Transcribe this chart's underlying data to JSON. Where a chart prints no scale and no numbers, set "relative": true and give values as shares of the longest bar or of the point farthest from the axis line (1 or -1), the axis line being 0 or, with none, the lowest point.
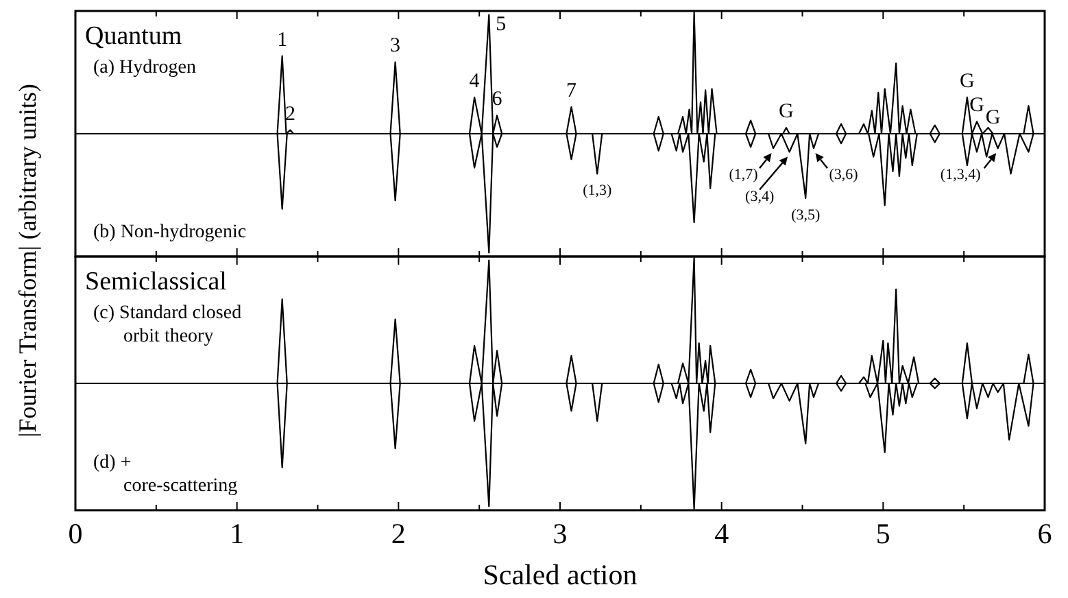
{
  "chart_data": [
    {
      "type": "line",
      "title": "Quantum",
      "ylabel": "|Fourier Transform| (arbitrary units)",
      "relative": true,
      "tick_labels": false,
      "xlim": [
        0,
        6
      ],
      "xticks": [
        0,
        {
          "value": 0.5,
          "label": null
        },
        1,
        {
          "value": 1.5,
          "label": null
        },
        2,
        {
          "value": 2.5,
          "label": null
        },
        3,
        {
          "value": 3.5,
          "label": null
        },
        4,
        {
          "value": 4.5,
          "label": null
        },
        5,
        {
          "value": 5.5,
          "label": null
        },
        6
      ],
      "series": [
        {
          "name": "(a) Hydrogen",
          "color": "#000000",
          "x": [
            0,
            1.25,
            1.28,
            1.305,
            1.33,
            1.35,
            1.95,
            1.98,
            2.01,
            2.44,
            2.47,
            2.515,
            2.56,
            2.585,
            2.61,
            2.64,
            3.04,
            3.07,
            3.1,
            3.58,
            3.61,
            3.64,
            3.73,
            3.76,
            3.78,
            3.8,
            3.815,
            3.83,
            3.85,
            3.87,
            3.885,
            3.9,
            3.92,
            3.94,
            3.97,
            4.15,
            4.18,
            4.21,
            4.38,
            4.4,
            4.42,
            4.71,
            4.74,
            4.77,
            4.85,
            4.88,
            4.905,
            4.93,
            4.95,
            4.97,
            4.99,
            5.01,
            5.045,
            5.08,
            5.1,
            5.12,
            5.145,
            5.17,
            5.2,
            5.29,
            5.32,
            5.35,
            5.49,
            5.52,
            5.55,
            5.58,
            5.615,
            5.65,
            5.68,
            5.87,
            5.9,
            5.93,
            6.0
          ],
          "values": [
            0,
            0,
            0.64,
            0,
            0.03,
            0,
            0,
            0.59,
            0,
            0,
            0.3,
            0,
            0.98,
            0,
            0.15,
            0,
            0,
            0.22,
            0,
            0,
            0.14,
            0,
            0,
            0.14,
            0,
            0.2,
            0,
            1.0,
            0,
            0.26,
            0,
            0.36,
            0,
            0.37,
            0,
            0,
            0.11,
            0,
            0,
            0.05,
            0,
            0,
            0.08,
            0,
            0,
            0.08,
            0,
            0.19,
            0,
            0.34,
            0,
            0.37,
            0,
            0.58,
            0,
            0.23,
            0,
            0.2,
            0,
            0,
            0.07,
            0,
            0,
            0.3,
            0,
            0.1,
            0,
            0.05,
            0,
            0,
            0.23,
            0,
            0
          ]
        },
        {
          "name": "(b) Non-hydrogenic",
          "color": "#000000",
          "x": [
            0,
            1.25,
            1.28,
            1.31,
            1.95,
            1.98,
            2.01,
            2.44,
            2.47,
            2.515,
            2.56,
            2.585,
            2.61,
            2.64,
            3.04,
            3.07,
            3.1,
            3.2,
            3.23,
            3.26,
            3.58,
            3.61,
            3.64,
            3.69,
            3.72,
            3.74,
            3.76,
            3.795,
            3.83,
            3.86,
            3.89,
            3.91,
            3.93,
            3.96,
            4.15,
            4.18,
            4.21,
            4.29,
            4.32,
            4.37,
            4.42,
            4.47,
            4.52,
            4.545,
            4.57,
            4.6,
            4.71,
            4.74,
            4.77,
            4.91,
            4.94,
            4.975,
            5.01,
            5.035,
            5.06,
            5.08,
            5.1,
            5.12,
            5.14,
            5.16,
            5.18,
            5.21,
            5.29,
            5.32,
            5.35,
            5.49,
            5.52,
            5.55,
            5.58,
            5.61,
            5.64,
            5.675,
            5.71,
            5.75,
            5.79,
            5.845,
            5.9,
            5.93,
            6.0
          ],
          "values": [
            0,
            0,
            -0.62,
            0,
            0,
            -0.55,
            0,
            0,
            -0.28,
            0,
            -0.98,
            0,
            -0.11,
            0,
            0,
            -0.21,
            0,
            0,
            -0.33,
            0,
            0,
            -0.14,
            0,
            0,
            -0.14,
            0,
            -0.15,
            0,
            -0.73,
            0,
            -0.23,
            0,
            -0.45,
            0,
            0,
            -0.11,
            0,
            0,
            -0.12,
            0,
            -0.15,
            0,
            -0.53,
            0,
            -0.12,
            0,
            0,
            -0.08,
            0,
            0,
            -0.19,
            0,
            -0.59,
            0,
            -0.31,
            0,
            -0.35,
            0,
            -0.2,
            0,
            -0.26,
            0,
            0,
            -0.07,
            0,
            0,
            -0.26,
            0,
            -0.15,
            0,
            -0.19,
            0,
            -0.12,
            0,
            -0.33,
            0,
            -0.15,
            0,
            0
          ]
        }
      ],
      "annotations": [
        {
          "text": "1",
          "x": 1.28,
          "y": 0.64
        },
        {
          "text": "2",
          "x": 1.33,
          "y": 0.03
        },
        {
          "text": "3",
          "x": 1.98,
          "y": 0.59
        },
        {
          "text": "4",
          "x": 2.47,
          "y": 0.3
        },
        {
          "text": "5",
          "x": 2.56,
          "y": 0.98
        },
        {
          "text": "6",
          "x": 2.61,
          "y": 0.15
        },
        {
          "text": "7",
          "x": 3.07,
          "y": 0.22
        },
        {
          "text": "G",
          "x": 4.4,
          "y": 0.05
        },
        {
          "text": "(1,3)",
          "x": 3.23,
          "y": -0.33
        },
        {
          "text": "(1,7)",
          "x": 4.32,
          "y": -0.12
        },
        {
          "text": "(3,4)",
          "x": 4.42,
          "y": -0.15
        },
        {
          "text": "(3,5)",
          "x": 4.52,
          "y": -0.53
        },
        {
          "text": "(3,6)",
          "x": 4.57,
          "y": -0.12
        },
        {
          "text": "(1,3,4)",
          "x": 5.71,
          "y": -0.12
        },
        {
          "text": "G",
          "x": 5.52,
          "y": 0.3
        },
        {
          "text": "G",
          "x": 5.58,
          "y": 0.1
        },
        {
          "text": "G",
          "x": 5.68,
          "y": 0
        }
      ]
    },
    {
      "type": "line",
      "title": "Semiclassical",
      "xlabel": "Scaled action",
      "relative": true,
      "tick_labels": "x",
      "xlim": [
        0,
        6
      ],
      "xticks": [
        0,
        {
          "value": 0.5,
          "label": null
        },
        1,
        {
          "value": 1.5,
          "label": null
        },
        2,
        {
          "value": 2.5,
          "label": null
        },
        3,
        {
          "value": 3.5,
          "label": null
        },
        4,
        {
          "value": 4.5,
          "label": null
        },
        5,
        {
          "value": 5.5,
          "label": null
        },
        6
      ],
      "series": [
        {
          "name": "(c) Standard closed orbit theory",
          "color": "#000000",
          "x": [
            0,
            1.25,
            1.28,
            1.31,
            1.95,
            1.98,
            2.01,
            2.44,
            2.47,
            2.515,
            2.56,
            2.585,
            2.61,
            2.64,
            3.04,
            3.07,
            3.1,
            3.58,
            3.61,
            3.64,
            3.73,
            3.76,
            3.795,
            3.83,
            3.845,
            3.86,
            3.88,
            3.9,
            3.915,
            3.93,
            3.96,
            4.15,
            4.18,
            4.21,
            4.71,
            4.74,
            4.77,
            4.85,
            4.88,
            4.905,
            4.93,
            4.965,
            5.0,
            5.015,
            5.03,
            5.055,
            5.08,
            5.1,
            5.12,
            5.155,
            5.19,
            5.22,
            5.29,
            5.32,
            5.35,
            5.49,
            5.52,
            5.55,
            5.87,
            5.9,
            5.93,
            6.0
          ],
          "values": [
            0,
            0,
            0.67,
            0,
            0,
            0.51,
            0,
            0,
            0.3,
            0,
            0.98,
            0,
            0.26,
            0,
            0,
            0.22,
            0,
            0,
            0.15,
            0,
            0,
            0.16,
            0,
            1.0,
            0,
            0.32,
            0,
            0.18,
            0,
            0.3,
            0,
            0,
            0.11,
            0,
            0,
            0.06,
            0,
            0,
            0.05,
            0,
            0.22,
            0,
            0.34,
            0,
            0.32,
            0,
            0.75,
            0,
            0.14,
            0,
            0.21,
            0,
            0,
            0.04,
            0,
            0,
            0.32,
            0,
            0,
            0.23,
            0,
            0
          ]
        },
        {
          "name": "(d) + core-scattering",
          "color": "#000000",
          "x": [
            0,
            1.25,
            1.28,
            1.31,
            1.95,
            1.98,
            2.01,
            2.44,
            2.47,
            2.515,
            2.56,
            2.585,
            2.61,
            2.64,
            3.04,
            3.07,
            3.1,
            3.2,
            3.23,
            3.26,
            3.58,
            3.61,
            3.64,
            3.69,
            3.72,
            3.74,
            3.76,
            3.795,
            3.83,
            3.86,
            3.89,
            3.91,
            3.93,
            3.96,
            4.15,
            4.18,
            4.21,
            4.29,
            4.32,
            4.37,
            4.42,
            4.47,
            4.52,
            4.545,
            4.57,
            4.6,
            4.71,
            4.74,
            4.77,
            4.89,
            4.92,
            4.965,
            5.01,
            5.035,
            5.06,
            5.08,
            5.1,
            5.12,
            5.14,
            5.16,
            5.18,
            5.21,
            5.29,
            5.32,
            5.35,
            5.49,
            5.52,
            5.55,
            5.58,
            5.615,
            5.65,
            5.68,
            5.71,
            5.745,
            5.78,
            5.84,
            5.9,
            5.93,
            6.0
          ],
          "values": [
            0,
            0,
            -0.67,
            0,
            0,
            -0.52,
            0,
            0,
            -0.3,
            0,
            -0.98,
            0,
            -0.26,
            0,
            0,
            -0.22,
            0,
            0,
            -0.3,
            0,
            0,
            -0.15,
            0,
            0,
            -0.12,
            0,
            -0.16,
            0,
            -1.0,
            0,
            -0.22,
            0,
            -0.39,
            0,
            0,
            -0.11,
            0,
            0,
            -0.12,
            0,
            -0.14,
            0,
            -0.48,
            0,
            -0.11,
            0,
            0,
            -0.06,
            0,
            0,
            -0.11,
            0,
            -0.55,
            0,
            -0.25,
            0,
            -0.18,
            0,
            -0.16,
            0,
            -0.11,
            0,
            0,
            -0.04,
            0,
            0,
            -0.28,
            0,
            -0.2,
            0,
            -0.11,
            0,
            -0.07,
            0,
            -0.45,
            0,
            -0.34,
            0,
            0
          ]
        }
      ]
    }
  ]
}
